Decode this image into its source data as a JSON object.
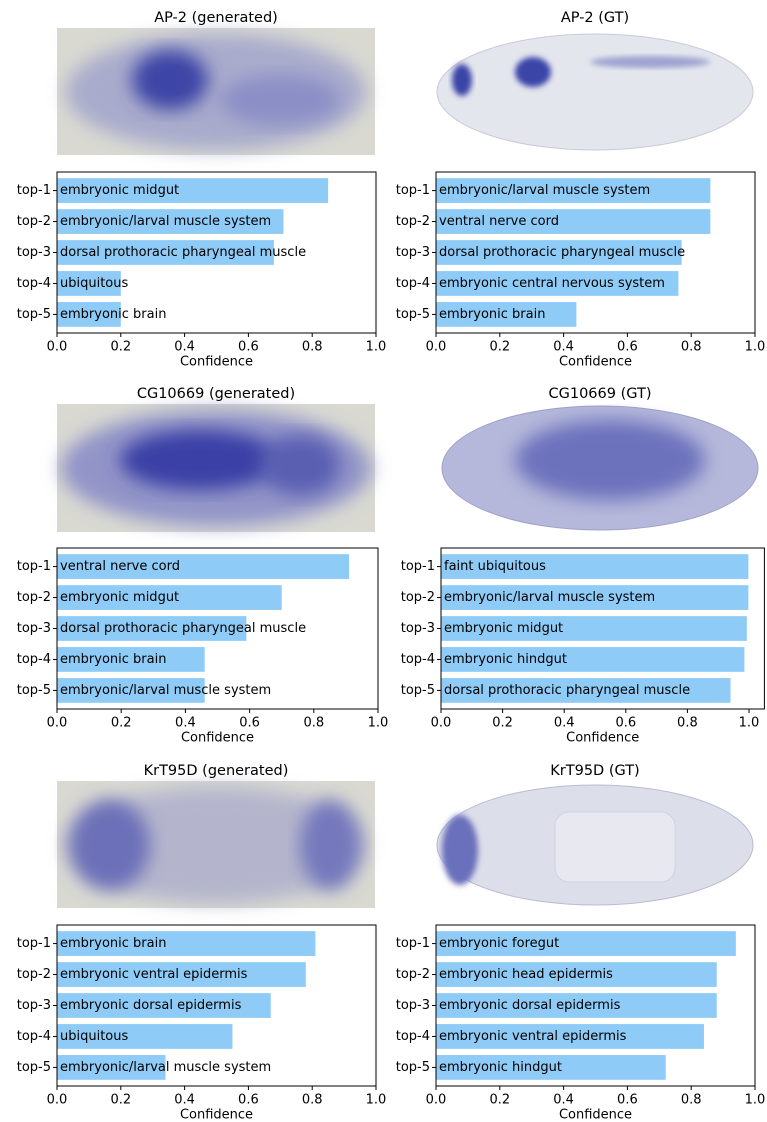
{
  "chart_data": [
    {
      "type": "bar",
      "orientation": "horizontal",
      "title": "AP-2 (generated)",
      "xlabel": "Confidence",
      "categories": [
        "top-1",
        "top-2",
        "top-3",
        "top-4",
        "top-5"
      ],
      "values": [
        0.85,
        0.71,
        0.68,
        0.2,
        0.2
      ],
      "bar_labels": [
        "embryonic midgut",
        "embryonic/larval muscle system",
        "dorsal prothoracic pharyngeal muscle",
        "ubiquitous",
        "embryonic brain"
      ],
      "color": "#8ecbf7",
      "xlim": [
        0,
        1
      ],
      "xticks": [
        {
          "value": 0,
          "label": "0.0"
        },
        {
          "value": 0.2,
          "label": "0.2"
        },
        {
          "value": 0.4,
          "label": "0.4"
        },
        {
          "value": 0.6,
          "label": "0.6"
        },
        {
          "value": 0.8,
          "label": "0.8"
        },
        {
          "value": 1,
          "label": "1.0"
        }
      ]
    },
    {
      "type": "bar",
      "orientation": "horizontal",
      "title": "AP-2 (GT)",
      "xlabel": "Confidence",
      "categories": [
        "top-1",
        "top-2",
        "top-3",
        "top-4",
        "top-5"
      ],
      "values": [
        0.86,
        0.86,
        0.77,
        0.76,
        0.44
      ],
      "bar_labels": [
        "embryonic/larval muscle system",
        "ventral nerve cord",
        "dorsal prothoracic pharyngeal muscle",
        "embryonic central nervous system",
        "embryonic brain"
      ],
      "color": "#8ecbf7",
      "xlim": [
        0,
        1
      ],
      "xticks": [
        {
          "value": 0,
          "label": "0.0"
        },
        {
          "value": 0.2,
          "label": "0.2"
        },
        {
          "value": 0.4,
          "label": "0.4"
        },
        {
          "value": 0.6,
          "label": "0.6"
        },
        {
          "value": 0.8,
          "label": "0.8"
        },
        {
          "value": 1,
          "label": "1.0"
        }
      ]
    },
    {
      "type": "bar",
      "orientation": "horizontal",
      "title": "CG10669 (generated)",
      "xlabel": "Confidence",
      "categories": [
        "top-1",
        "top-2",
        "top-3",
        "top-4",
        "top-5"
      ],
      "values": [
        0.91,
        0.7,
        0.59,
        0.46,
        0.46
      ],
      "bar_labels": [
        "ventral nerve cord",
        "embryonic midgut",
        "dorsal prothoracic pharyngeal muscle",
        "embryonic brain",
        "embryonic/larval muscle system"
      ],
      "color": "#8ecbf7",
      "xlim": [
        0,
        1
      ],
      "xticks": [
        {
          "value": 0,
          "label": "0.0"
        },
        {
          "value": 0.2,
          "label": "0.2"
        },
        {
          "value": 0.4,
          "label": "0.4"
        },
        {
          "value": 0.6,
          "label": "0.6"
        },
        {
          "value": 0.8,
          "label": "0.8"
        },
        {
          "value": 1,
          "label": "1.0"
        }
      ]
    },
    {
      "type": "bar",
      "orientation": "horizontal",
      "title": "CG10669 (GT)",
      "xlabel": "Confidence",
      "categories": [
        "top-1",
        "top-2",
        "top-3",
        "top-4",
        "top-5"
      ],
      "values": [
        0.998,
        0.998,
        0.993,
        0.985,
        0.94
      ],
      "bar_labels": [
        "faint ubiquitous",
        "embryonic/larval muscle system",
        "embryonic midgut",
        "embryonic hindgut",
        "dorsal prothoracic pharyngeal muscle"
      ],
      "color": "#8ecbf7",
      "xlim": [
        0,
        1.05
      ],
      "xticks": [
        {
          "value": 0,
          "label": "0.0"
        },
        {
          "value": 0.2,
          "label": "0.2"
        },
        {
          "value": 0.4,
          "label": "0.4"
        },
        {
          "value": 0.6,
          "label": "0.6"
        },
        {
          "value": 0.8,
          "label": "0.8"
        },
        {
          "value": 1,
          "label": "1.0"
        }
      ]
    },
    {
      "type": "bar",
      "orientation": "horizontal",
      "title": "KrT95D (generated)",
      "xlabel": "Confidence",
      "categories": [
        "top-1",
        "top-2",
        "top-3",
        "top-4",
        "top-5"
      ],
      "values": [
        0.81,
        0.78,
        0.67,
        0.55,
        0.34
      ],
      "bar_labels": [
        "embryonic brain",
        "embryonic ventral epidermis",
        "embryonic dorsal epidermis",
        "ubiquitous",
        "embryonic/larval muscle system"
      ],
      "color": "#8ecbf7",
      "xlim": [
        0,
        1
      ],
      "xticks": [
        {
          "value": 0,
          "label": "0.0"
        },
        {
          "value": 0.2,
          "label": "0.2"
        },
        {
          "value": 0.4,
          "label": "0.4"
        },
        {
          "value": 0.6,
          "label": "0.6"
        },
        {
          "value": 0.8,
          "label": "0.8"
        },
        {
          "value": 1,
          "label": "1.0"
        }
      ]
    },
    {
      "type": "bar",
      "orientation": "horizontal",
      "title": "KrT95D (GT)",
      "xlabel": "Confidence",
      "categories": [
        "top-1",
        "top-2",
        "top-3",
        "top-4",
        "top-5"
      ],
      "values": [
        0.94,
        0.88,
        0.88,
        0.84,
        0.72
      ],
      "bar_labels": [
        "embryonic foregut",
        "embryonic head epidermis",
        "embryonic dorsal epidermis",
        "embryonic ventral epidermis",
        "embryonic hindgut"
      ],
      "color": "#8ecbf7",
      "xlim": [
        0,
        1
      ],
      "xticks": [
        {
          "value": 0,
          "label": "0.0"
        },
        {
          "value": 0.2,
          "label": "0.2"
        },
        {
          "value": 0.4,
          "label": "0.4"
        },
        {
          "value": 0.6,
          "label": "0.6"
        },
        {
          "value": 0.8,
          "label": "0.8"
        },
        {
          "value": 1,
          "label": "1.0"
        }
      ]
    }
  ]
}
